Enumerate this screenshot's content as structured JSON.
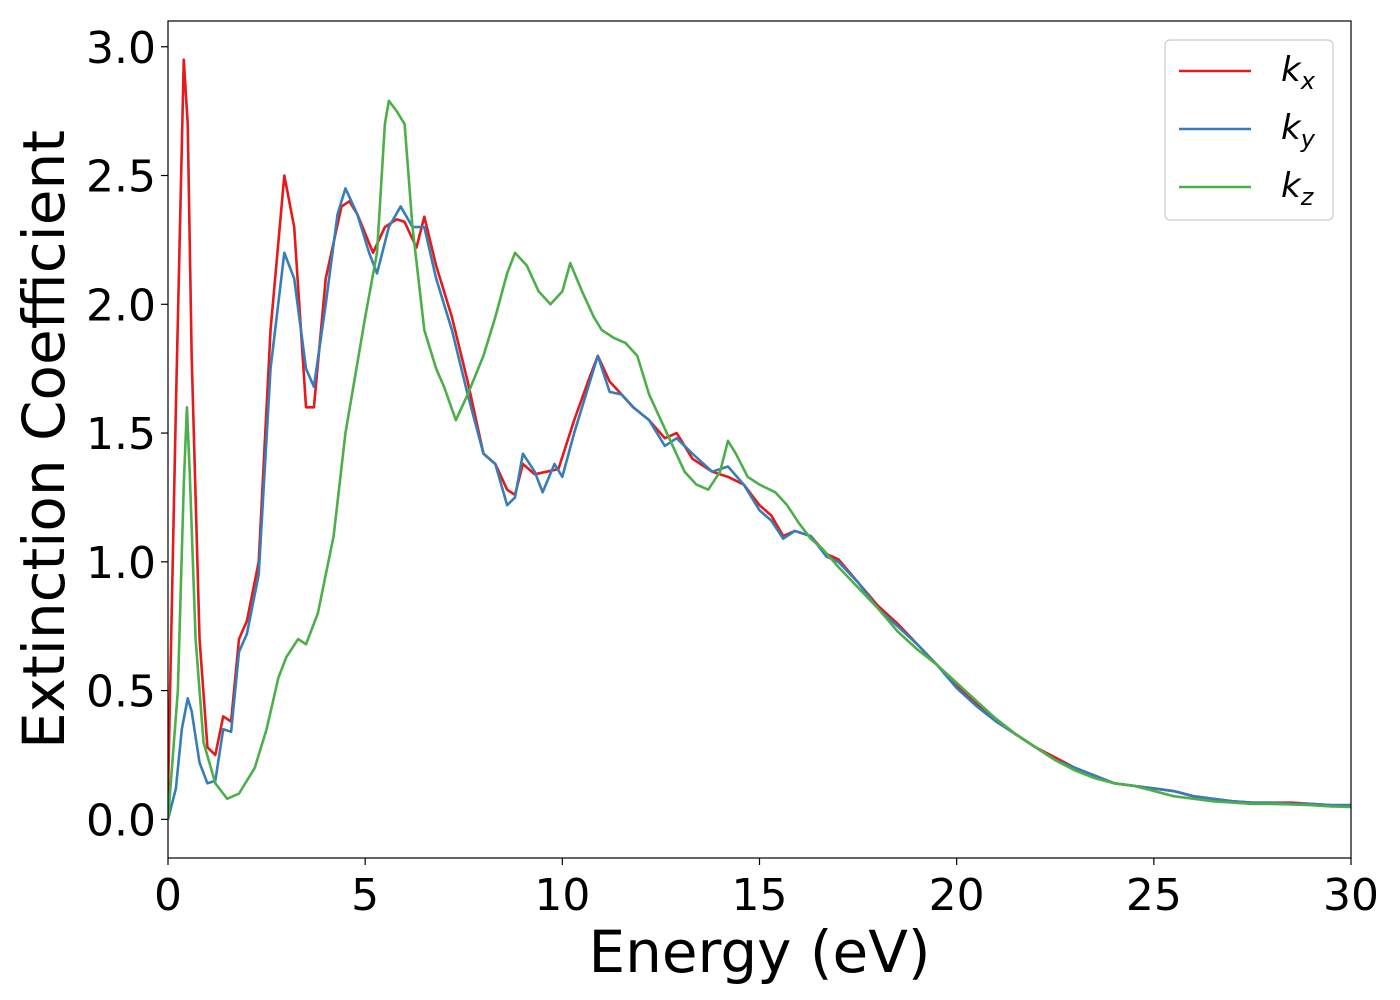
{
  "chart_data": {
    "type": "line",
    "title": "",
    "xlabel": "Energy (eV)",
    "ylabel": "Extinction Coefficient",
    "xlim": [
      0,
      30
    ],
    "ylim": [
      -0.15,
      3.1
    ],
    "xticks": [
      0,
      5,
      10,
      15,
      20,
      25,
      30
    ],
    "xtick_labels": [
      "0",
      "5",
      "10",
      "15",
      "20",
      "25",
      "30"
    ],
    "yticks": [
      0.0,
      0.5,
      1.0,
      1.5,
      2.0,
      2.5,
      3.0
    ],
    "ytick_labels": [
      "0.0",
      "0.5",
      "1.0",
      "1.5",
      "2.0",
      "2.5",
      "3.0"
    ],
    "grid": false,
    "legend_position": "top-right",
    "series": [
      {
        "name": "k_x",
        "label_base": "k",
        "label_sub": "x",
        "color": "#e41a1c",
        "points": [
          [
            0,
            0.1
          ],
          [
            0.2,
            1.6
          ],
          [
            0.4,
            2.95
          ],
          [
            0.5,
            2.7
          ],
          [
            0.6,
            1.8
          ],
          [
            0.8,
            0.7
          ],
          [
            1.0,
            0.28
          ],
          [
            1.2,
            0.25
          ],
          [
            1.4,
            0.4
          ],
          [
            1.6,
            0.38
          ],
          [
            1.8,
            0.7
          ],
          [
            2.0,
            0.77
          ],
          [
            2.3,
            1.0
          ],
          [
            2.6,
            1.9
          ],
          [
            2.95,
            2.5
          ],
          [
            3.2,
            2.3
          ],
          [
            3.5,
            1.6
          ],
          [
            3.7,
            1.6
          ],
          [
            4.0,
            2.1
          ],
          [
            4.4,
            2.38
          ],
          [
            4.6,
            2.4
          ],
          [
            4.8,
            2.35
          ],
          [
            5.2,
            2.2
          ],
          [
            5.5,
            2.3
          ],
          [
            5.8,
            2.33
          ],
          [
            6.0,
            2.32
          ],
          [
            6.3,
            2.22
          ],
          [
            6.5,
            2.34
          ],
          [
            6.8,
            2.15
          ],
          [
            7.2,
            1.95
          ],
          [
            7.6,
            1.7
          ],
          [
            8.0,
            1.42
          ],
          [
            8.3,
            1.38
          ],
          [
            8.6,
            1.28
          ],
          [
            8.8,
            1.26
          ],
          [
            9.0,
            1.38
          ],
          [
            9.3,
            1.34
          ],
          [
            9.6,
            1.35
          ],
          [
            9.9,
            1.36
          ],
          [
            10.3,
            1.55
          ],
          [
            10.7,
            1.72
          ],
          [
            10.9,
            1.8
          ],
          [
            11.2,
            1.7
          ],
          [
            11.5,
            1.65
          ],
          [
            11.8,
            1.6
          ],
          [
            12.2,
            1.55
          ],
          [
            12.6,
            1.48
          ],
          [
            12.9,
            1.5
          ],
          [
            13.3,
            1.4
          ],
          [
            13.8,
            1.35
          ],
          [
            14.2,
            1.33
          ],
          [
            14.6,
            1.3
          ],
          [
            15.0,
            1.22
          ],
          [
            15.3,
            1.18
          ],
          [
            15.6,
            1.1
          ],
          [
            15.9,
            1.12
          ],
          [
            16.3,
            1.1
          ],
          [
            16.7,
            1.03
          ],
          [
            17.0,
            1.01
          ],
          [
            17.5,
            0.92
          ],
          [
            18.0,
            0.83
          ],
          [
            18.5,
            0.76
          ],
          [
            19.0,
            0.68
          ],
          [
            19.5,
            0.6
          ],
          [
            20.0,
            0.52
          ],
          [
            20.5,
            0.45
          ],
          [
            21.0,
            0.39
          ],
          [
            21.5,
            0.33
          ],
          [
            22.0,
            0.28
          ],
          [
            22.5,
            0.24
          ],
          [
            23.0,
            0.2
          ],
          [
            23.5,
            0.17
          ],
          [
            24.0,
            0.14
          ],
          [
            24.5,
            0.13
          ],
          [
            25.0,
            0.12
          ],
          [
            25.5,
            0.11
          ],
          [
            26.0,
            0.09
          ],
          [
            26.5,
            0.08
          ],
          [
            27.0,
            0.07
          ],
          [
            27.5,
            0.065
          ],
          [
            28.0,
            0.065
          ],
          [
            28.5,
            0.065
          ],
          [
            29.0,
            0.06
          ],
          [
            29.5,
            0.055
          ],
          [
            30.0,
            0.055
          ]
        ]
      },
      {
        "name": "k_y",
        "label_base": "k",
        "label_sub": "y",
        "color": "#377eb8",
        "points": [
          [
            0,
            0.0
          ],
          [
            0.2,
            0.12
          ],
          [
            0.35,
            0.35
          ],
          [
            0.5,
            0.47
          ],
          [
            0.6,
            0.42
          ],
          [
            0.8,
            0.22
          ],
          [
            1.0,
            0.14
          ],
          [
            1.2,
            0.15
          ],
          [
            1.4,
            0.35
          ],
          [
            1.6,
            0.34
          ],
          [
            1.8,
            0.65
          ],
          [
            2.0,
            0.72
          ],
          [
            2.3,
            0.95
          ],
          [
            2.6,
            1.75
          ],
          [
            2.95,
            2.2
          ],
          [
            3.2,
            2.1
          ],
          [
            3.5,
            1.75
          ],
          [
            3.7,
            1.68
          ],
          [
            4.0,
            2.0
          ],
          [
            4.3,
            2.35
          ],
          [
            4.5,
            2.45
          ],
          [
            4.8,
            2.35
          ],
          [
            5.1,
            2.2
          ],
          [
            5.3,
            2.12
          ],
          [
            5.6,
            2.3
          ],
          [
            5.9,
            2.38
          ],
          [
            6.2,
            2.3
          ],
          [
            6.5,
            2.3
          ],
          [
            6.8,
            2.1
          ],
          [
            7.2,
            1.9
          ],
          [
            7.6,
            1.65
          ],
          [
            8.0,
            1.42
          ],
          [
            8.3,
            1.38
          ],
          [
            8.6,
            1.22
          ],
          [
            8.8,
            1.25
          ],
          [
            9.0,
            1.42
          ],
          [
            9.3,
            1.35
          ],
          [
            9.5,
            1.27
          ],
          [
            9.8,
            1.38
          ],
          [
            10.0,
            1.33
          ],
          [
            10.3,
            1.5
          ],
          [
            10.7,
            1.7
          ],
          [
            10.9,
            1.8
          ],
          [
            11.2,
            1.66
          ],
          [
            11.5,
            1.65
          ],
          [
            11.8,
            1.6
          ],
          [
            12.2,
            1.55
          ],
          [
            12.6,
            1.45
          ],
          [
            12.9,
            1.48
          ],
          [
            13.3,
            1.42
          ],
          [
            13.8,
            1.35
          ],
          [
            14.2,
            1.37
          ],
          [
            14.6,
            1.3
          ],
          [
            15.0,
            1.2
          ],
          [
            15.3,
            1.16
          ],
          [
            15.6,
            1.09
          ],
          [
            15.9,
            1.12
          ],
          [
            16.3,
            1.1
          ],
          [
            16.7,
            1.02
          ],
          [
            17.0,
            1.0
          ],
          [
            17.5,
            0.92
          ],
          [
            18.0,
            0.82
          ],
          [
            18.5,
            0.75
          ],
          [
            19.0,
            0.68
          ],
          [
            19.5,
            0.6
          ],
          [
            20.0,
            0.51
          ],
          [
            20.5,
            0.44
          ],
          [
            21.0,
            0.38
          ],
          [
            21.5,
            0.33
          ],
          [
            22.0,
            0.28
          ],
          [
            22.5,
            0.23
          ],
          [
            23.0,
            0.2
          ],
          [
            23.5,
            0.17
          ],
          [
            24.0,
            0.14
          ],
          [
            24.5,
            0.13
          ],
          [
            25.0,
            0.12
          ],
          [
            25.5,
            0.11
          ],
          [
            26.0,
            0.09
          ],
          [
            26.5,
            0.08
          ],
          [
            27.0,
            0.07
          ],
          [
            27.5,
            0.065
          ],
          [
            28.0,
            0.065
          ],
          [
            28.5,
            0.06
          ],
          [
            29.0,
            0.06
          ],
          [
            29.5,
            0.055
          ],
          [
            30.0,
            0.055
          ]
        ]
      },
      {
        "name": "k_z",
        "label_base": "k",
        "label_sub": "z",
        "color": "#4daf4a",
        "points": [
          [
            0,
            0.0
          ],
          [
            0.25,
            0.5
          ],
          [
            0.4,
            1.3
          ],
          [
            0.48,
            1.6
          ],
          [
            0.55,
            1.35
          ],
          [
            0.7,
            0.7
          ],
          [
            0.9,
            0.3
          ],
          [
            1.2,
            0.14
          ],
          [
            1.5,
            0.08
          ],
          [
            1.8,
            0.1
          ],
          [
            2.2,
            0.2
          ],
          [
            2.5,
            0.35
          ],
          [
            2.8,
            0.55
          ],
          [
            3.0,
            0.63
          ],
          [
            3.3,
            0.7
          ],
          [
            3.5,
            0.68
          ],
          [
            3.8,
            0.8
          ],
          [
            4.2,
            1.1
          ],
          [
            4.5,
            1.5
          ],
          [
            5.0,
            1.95
          ],
          [
            5.3,
            2.2
          ],
          [
            5.5,
            2.7
          ],
          [
            5.6,
            2.79
          ],
          [
            5.8,
            2.75
          ],
          [
            6.0,
            2.7
          ],
          [
            6.2,
            2.3
          ],
          [
            6.5,
            1.9
          ],
          [
            6.8,
            1.75
          ],
          [
            7.0,
            1.68
          ],
          [
            7.3,
            1.55
          ],
          [
            7.6,
            1.65
          ],
          [
            8.0,
            1.8
          ],
          [
            8.3,
            1.95
          ],
          [
            8.6,
            2.12
          ],
          [
            8.8,
            2.2
          ],
          [
            9.1,
            2.15
          ],
          [
            9.4,
            2.05
          ],
          [
            9.7,
            2.0
          ],
          [
            10.0,
            2.05
          ],
          [
            10.2,
            2.16
          ],
          [
            10.5,
            2.05
          ],
          [
            10.8,
            1.95
          ],
          [
            11.0,
            1.9
          ],
          [
            11.3,
            1.87
          ],
          [
            11.6,
            1.85
          ],
          [
            11.9,
            1.8
          ],
          [
            12.2,
            1.65
          ],
          [
            12.5,
            1.55
          ],
          [
            12.8,
            1.45
          ],
          [
            13.1,
            1.35
          ],
          [
            13.4,
            1.3
          ],
          [
            13.7,
            1.28
          ],
          [
            14.0,
            1.35
          ],
          [
            14.2,
            1.47
          ],
          [
            14.4,
            1.42
          ],
          [
            14.7,
            1.33
          ],
          [
            15.0,
            1.3
          ],
          [
            15.4,
            1.27
          ],
          [
            15.7,
            1.22
          ],
          [
            16.0,
            1.15
          ],
          [
            16.3,
            1.09
          ],
          [
            16.6,
            1.05
          ],
          [
            17.0,
            0.98
          ],
          [
            17.5,
            0.9
          ],
          [
            18.0,
            0.82
          ],
          [
            18.5,
            0.73
          ],
          [
            19.0,
            0.66
          ],
          [
            19.5,
            0.6
          ],
          [
            20.0,
            0.53
          ],
          [
            20.5,
            0.46
          ],
          [
            21.0,
            0.39
          ],
          [
            21.5,
            0.33
          ],
          [
            22.0,
            0.28
          ],
          [
            22.5,
            0.23
          ],
          [
            23.0,
            0.19
          ],
          [
            23.5,
            0.16
          ],
          [
            24.0,
            0.14
          ],
          [
            24.5,
            0.13
          ],
          [
            25.0,
            0.11
          ],
          [
            25.5,
            0.09
          ],
          [
            26.0,
            0.08
          ],
          [
            26.5,
            0.07
          ],
          [
            27.0,
            0.065
          ],
          [
            27.5,
            0.06
          ],
          [
            28.0,
            0.06
          ],
          [
            28.5,
            0.058
          ],
          [
            29.0,
            0.055
          ],
          [
            29.5,
            0.05
          ],
          [
            30.0,
            0.048
          ]
        ]
      }
    ]
  }
}
